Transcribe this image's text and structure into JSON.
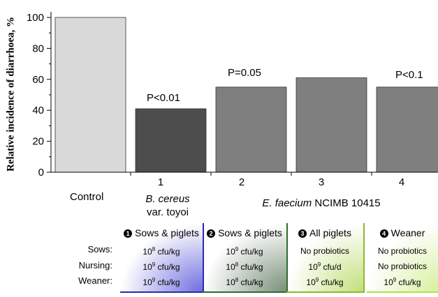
{
  "chart_data": {
    "type": "bar",
    "ylabel": "Relative incidence of diarrhoea, %",
    "ylim": [
      0,
      100
    ],
    "yticks": [
      0,
      20,
      40,
      60,
      80,
      100
    ],
    "grid": false,
    "categories": [
      "Control",
      "1",
      "2",
      "3",
      "4"
    ],
    "values": [
      100,
      41,
      55,
      61,
      55
    ],
    "bar_colors": [
      "#d9d9d9",
      "#4d4d4d",
      "#7f7f7f",
      "#7f7f7f",
      "#7f7f7f"
    ],
    "annotations": [
      "",
      "P<0.01",
      "P=0.05",
      "",
      "P<0.1"
    ],
    "group_labels": [
      {
        "italic": "B. cereus",
        "rest": "var. toyoi"
      },
      {
        "italic": "E. faecium",
        "rest": " NCIMB 10415"
      }
    ]
  },
  "table": {
    "row_labels": [
      "Sows:",
      "Nursing:",
      "Weaner:"
    ],
    "columns": [
      {
        "num": "1",
        "title": "Sows & piglets",
        "cells": [
          [
            "10",
            "8",
            " cfu/kg"
          ],
          [
            "10",
            "9",
            " cfu/kg"
          ],
          [
            "10",
            "9",
            " cfu/kg"
          ]
        ],
        "color": "#2a2aa8",
        "fill": "#6f6fe0"
      },
      {
        "num": "2",
        "title": "Sows & piglets",
        "cells": [
          [
            "10",
            "9",
            " cfu/kg"
          ],
          [
            "10",
            "8",
            " cfu/kg"
          ],
          [
            "10",
            "8",
            " cfu/kg"
          ]
        ],
        "color": "#2e6b2e",
        "fill": "#7a8f7a"
      },
      {
        "num": "3",
        "title": "All piglets",
        "cells": [
          [
            "No probiotics",
            "",
            ""
          ],
          [
            "10",
            "9",
            " cfu/d"
          ],
          [
            "10",
            "9",
            " cfu/kg"
          ]
        ],
        "color": "#8fb82a",
        "fill": "#c2e07a"
      },
      {
        "num": "4",
        "title": "Weaner",
        "cells": [
          [
            "No probiotics",
            "",
            ""
          ],
          [
            "No probiotics",
            "",
            ""
          ],
          [
            "10",
            "9",
            " cfu/kg"
          ]
        ],
        "color": "#b4e040",
        "fill": "#d8f0a0"
      }
    ]
  }
}
